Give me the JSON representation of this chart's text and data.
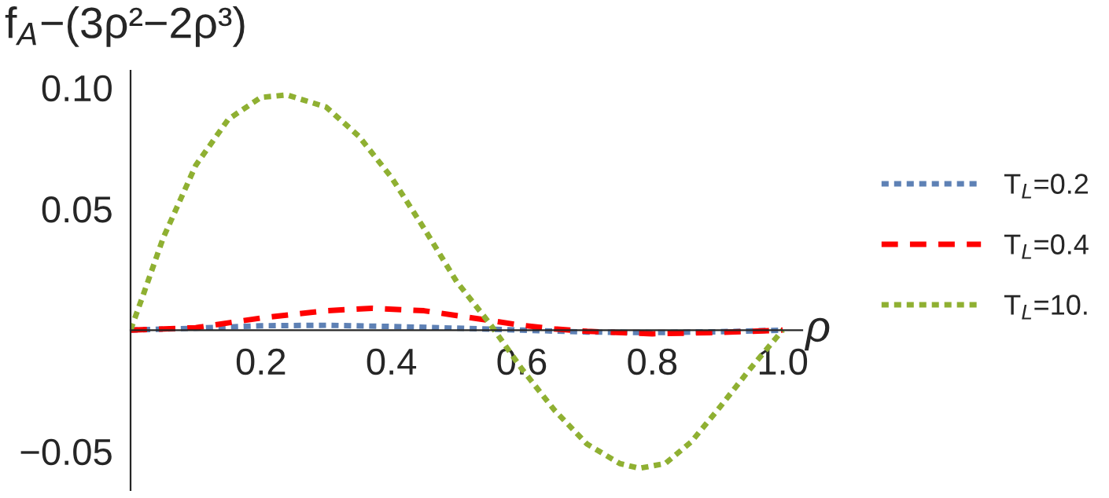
{
  "chart_data": {
    "type": "line",
    "xlabel": "ρ",
    "ylabel": "f$_{A}$−(3ρ²−2ρ³)",
    "xlim": [
      0,
      1.03
    ],
    "ylim": [
      -0.066,
      0.107
    ],
    "xticks": [
      0.2,
      0.4,
      0.6,
      0.8,
      {
        "value": 1.0,
        "label": "1.0"
      }
    ],
    "yticks": [
      {
        "value": -0.05,
        "label": "−0.05"
      },
      0.05,
      {
        "value": 0.1,
        "label": "0.10"
      }
    ],
    "legend": "right",
    "grid": false,
    "series": [
      {
        "name": "T$_{L}$=0.2",
        "color": "#5e81b5",
        "line_style": "dotted",
        "x": [
          0,
          0.1,
          0.2,
          0.3,
          0.4,
          0.5,
          0.6,
          0.7,
          0.8,
          0.9,
          1.0
        ],
        "values": [
          0,
          0.0008,
          0.0018,
          0.002,
          0.0015,
          0.0008,
          0,
          -0.0008,
          -0.001,
          -0.0007,
          0
        ]
      },
      {
        "name": "T$_{L}$=0.4",
        "color": "#ff0000",
        "line_style": "dashed",
        "x": [
          0,
          0.1,
          0.2,
          0.3,
          0.37,
          0.45,
          0.5,
          0.55,
          0.6,
          0.65,
          0.7,
          0.8,
          0.9,
          1.0
        ],
        "values": [
          0,
          0.001,
          0.005,
          0.008,
          0.009,
          0.008,
          0.006,
          0.004,
          0.002,
          0.0005,
          -0.0005,
          -0.0015,
          -0.001,
          0
        ]
      },
      {
        "name": "T$_{L}$=10.",
        "color": "#8fb032",
        "line_style": "dotted",
        "x": [
          0,
          0.02,
          0.05,
          0.1,
          0.15,
          0.2,
          0.24,
          0.3,
          0.35,
          0.4,
          0.45,
          0.5,
          0.55,
          0.6,
          0.65,
          0.7,
          0.75,
          0.78,
          0.82,
          0.86,
          0.9,
          0.95,
          1.0
        ],
        "values": [
          0,
          0.015,
          0.038,
          0.068,
          0.087,
          0.096,
          0.097,
          0.092,
          0.08,
          0.063,
          0.042,
          0.02,
          0.003,
          -0.016,
          -0.033,
          -0.047,
          -0.055,
          -0.057,
          -0.055,
          -0.046,
          -0.033,
          -0.016,
          0
        ]
      }
    ]
  }
}
